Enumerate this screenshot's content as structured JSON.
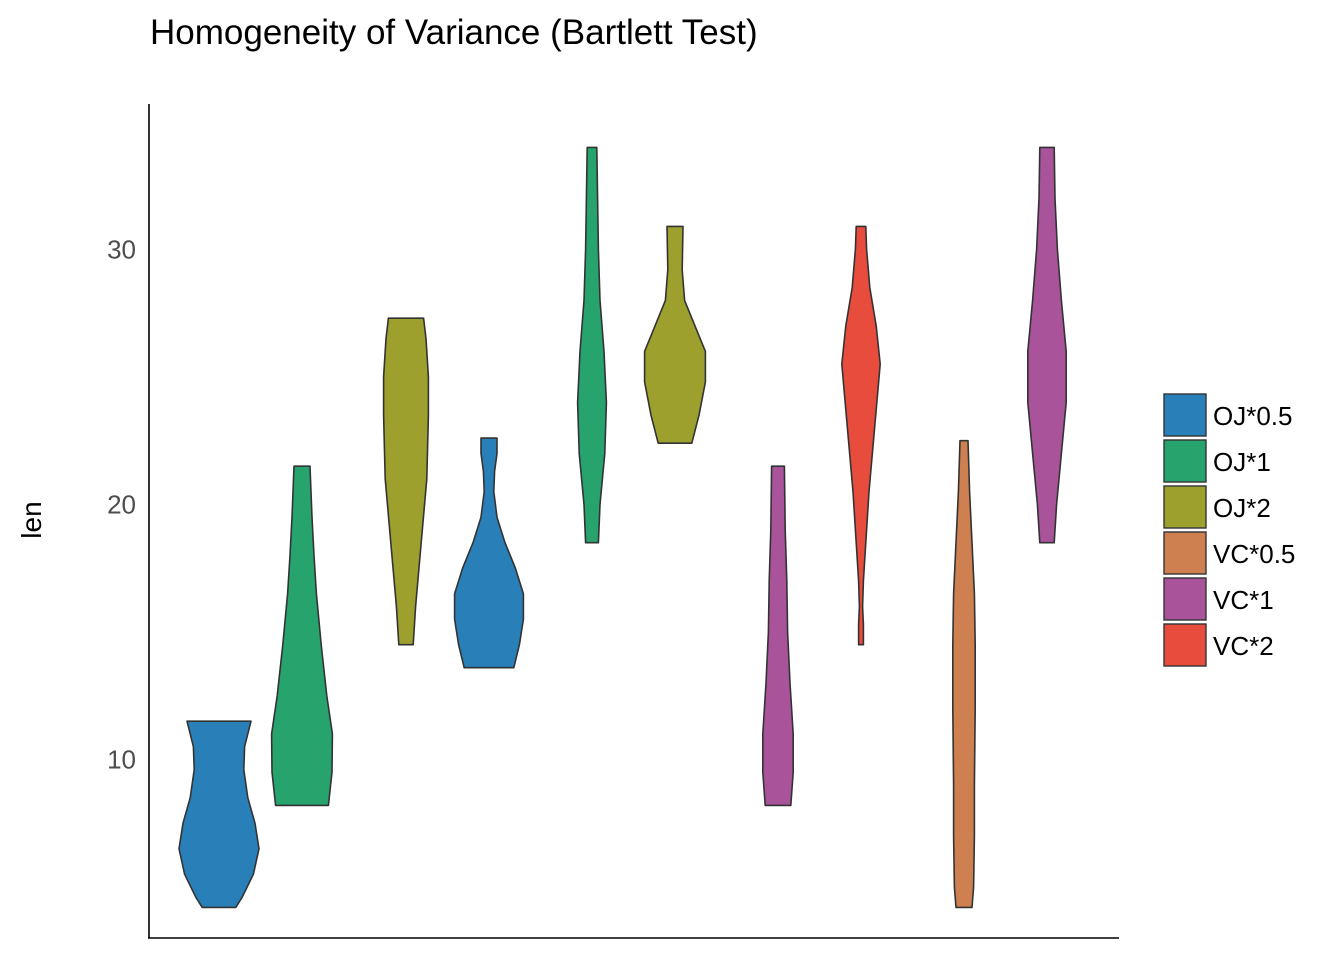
{
  "chart_data": {
    "type": "violin",
    "title": "Homogeneity of Variance (Bartlett Test)",
    "xlabel": "",
    "ylabel": "len",
    "ylim": [
      3,
      35.7
    ],
    "y_ticks": [
      10,
      20,
      30
    ],
    "grid": false,
    "legend_position": "right",
    "legend": [
      {
        "label": "OJ*0.5",
        "color": "#2980B9"
      },
      {
        "label": "OJ*1",
        "color": "#27A36E"
      },
      {
        "label": "OJ*2",
        "color": "#9EA02E"
      },
      {
        "label": "VC*0.5",
        "color": "#CE8050"
      },
      {
        "label": "VC*1",
        "color": "#A8539A"
      },
      {
        "label": "VC*2",
        "color": "#E84C3C"
      }
    ],
    "violins": [
      {
        "group": "OJ*0.5",
        "color": "#2980B9",
        "profile": [
          [
            4.2,
            0.42
          ],
          [
            4.6,
            0.58
          ],
          [
            5.5,
            0.86
          ],
          [
            6.5,
            1.0
          ],
          [
            7.5,
            0.9
          ],
          [
            8.5,
            0.72
          ],
          [
            9.6,
            0.62
          ],
          [
            10.5,
            0.64
          ],
          [
            11.5,
            0.8
          ]
        ]
      },
      {
        "group": "OJ*1",
        "color": "#27A36E",
        "profile": [
          [
            8.2,
            0.66
          ],
          [
            9.5,
            0.75
          ],
          [
            11,
            0.76
          ],
          [
            12.5,
            0.62
          ],
          [
            14.5,
            0.48
          ],
          [
            16.5,
            0.36
          ],
          [
            18,
            0.3
          ],
          [
            19.5,
            0.25
          ],
          [
            21.5,
            0.2
          ]
        ]
      },
      {
        "group": "OJ*2",
        "color": "#9EA02E",
        "profile": [
          [
            14.5,
            0.18
          ],
          [
            16,
            0.24
          ],
          [
            18.5,
            0.38
          ],
          [
            21,
            0.52
          ],
          [
            23.5,
            0.56
          ],
          [
            25,
            0.56
          ],
          [
            26.5,
            0.5
          ],
          [
            27.3,
            0.44
          ]
        ]
      },
      {
        "group": "OJ*0.5",
        "color": "#2980B9",
        "profile": [
          [
            13.6,
            0.62
          ],
          [
            14.5,
            0.76
          ],
          [
            15.5,
            0.86
          ],
          [
            16.5,
            0.86
          ],
          [
            17.5,
            0.66
          ],
          [
            18.5,
            0.4
          ],
          [
            19.5,
            0.2
          ],
          [
            20.5,
            0.12
          ],
          [
            21.3,
            0.14
          ],
          [
            22.0,
            0.2
          ],
          [
            22.6,
            0.2
          ]
        ]
      },
      {
        "group": "OJ*1",
        "color": "#27A36E",
        "profile": [
          [
            18.5,
            0.16
          ],
          [
            20,
            0.2
          ],
          [
            22,
            0.32
          ],
          [
            24,
            0.36
          ],
          [
            26,
            0.3
          ],
          [
            28,
            0.2
          ],
          [
            30,
            0.16
          ],
          [
            32,
            0.14
          ],
          [
            34,
            0.12
          ]
        ]
      },
      {
        "group": "OJ*2",
        "color": "#9EA02E",
        "profile": [
          [
            22.4,
            0.42
          ],
          [
            23.5,
            0.6
          ],
          [
            24.8,
            0.76
          ],
          [
            26,
            0.76
          ],
          [
            27,
            0.5
          ],
          [
            28,
            0.24
          ],
          [
            29.2,
            0.18
          ],
          [
            30.9,
            0.2
          ]
        ]
      },
      {
        "group": "VC*1",
        "color": "#A8539A",
        "profile": [
          [
            8.2,
            0.32
          ],
          [
            9.5,
            0.38
          ],
          [
            11,
            0.38
          ],
          [
            13,
            0.3
          ],
          [
            15,
            0.24
          ],
          [
            17,
            0.22
          ],
          [
            19,
            0.18
          ],
          [
            21.5,
            0.16
          ]
        ]
      },
      {
        "group": "VC*2",
        "color": "#E84C3C",
        "profile": [
          [
            14.5,
            0.06
          ],
          [
            15.3,
            0.06
          ],
          [
            16,
            0.04
          ],
          [
            17,
            0.06
          ],
          [
            18.5,
            0.12
          ],
          [
            20.5,
            0.2
          ],
          [
            23,
            0.34
          ],
          [
            25.5,
            0.48
          ],
          [
            27,
            0.38
          ],
          [
            28.5,
            0.22
          ],
          [
            30,
            0.14
          ],
          [
            30.9,
            0.12
          ]
        ]
      },
      {
        "group": "VC*0.5",
        "color": "#CE8050",
        "profile": [
          [
            4.2,
            0.2
          ],
          [
            5,
            0.24
          ],
          [
            7,
            0.26
          ],
          [
            9,
            0.26
          ],
          [
            12,
            0.28
          ],
          [
            14.5,
            0.28
          ],
          [
            16.5,
            0.26
          ],
          [
            18.5,
            0.2
          ],
          [
            20.5,
            0.14
          ],
          [
            22.5,
            0.1
          ]
        ]
      },
      {
        "group": "VC*1",
        "color": "#A8539A",
        "profile": [
          [
            18.5,
            0.18
          ],
          [
            20,
            0.24
          ],
          [
            22,
            0.36
          ],
          [
            24,
            0.48
          ],
          [
            26,
            0.48
          ],
          [
            28,
            0.36
          ],
          [
            30,
            0.26
          ],
          [
            32,
            0.2
          ],
          [
            34,
            0.18
          ]
        ]
      }
    ]
  }
}
